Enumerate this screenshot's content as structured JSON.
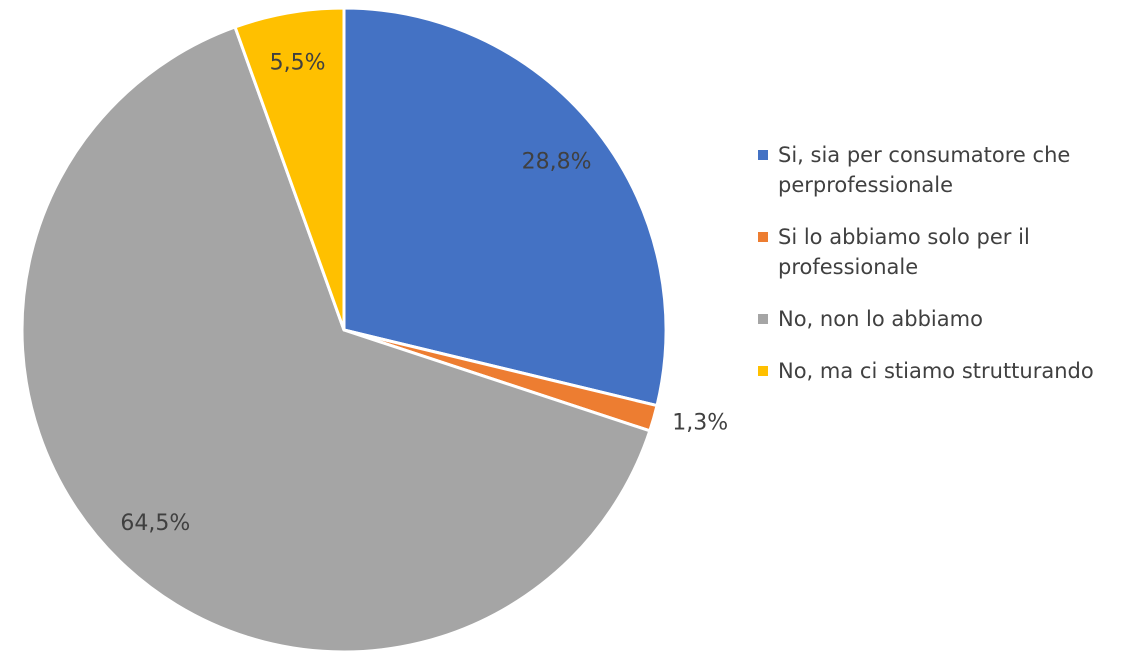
{
  "chart_data": {
    "type": "pie",
    "categories": [
      "Si, sia per consumatore che perprofessionale",
      "Si lo abbiamo solo per il professionale",
      "No, non lo abbiamo",
      "No, ma ci stiamo strutturando"
    ],
    "values": [
      28.8,
      1.3,
      64.5,
      5.5
    ],
    "value_labels": [
      "28,8%",
      "1,3%",
      "64,5%",
      "5,5%"
    ],
    "colors": [
      "#4472c4",
      "#ed7d31",
      "#a5a5a5",
      "#ffc000"
    ],
    "legend": "right"
  }
}
